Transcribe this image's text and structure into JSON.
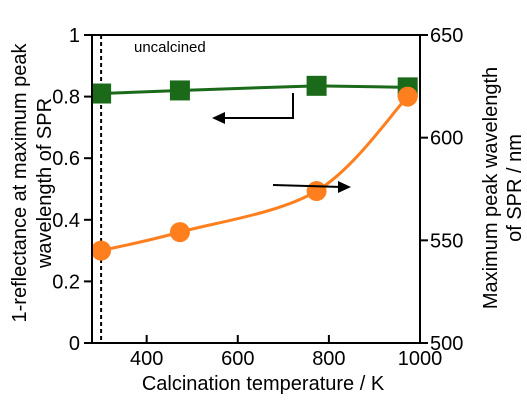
{
  "chart_data": {
    "type": "line",
    "xlabel": "Calcination temperature / K",
    "ylabel_left": [
      "1-reflectance at maximum peak",
      "wavelength of SPR"
    ],
    "ylabel_right": [
      "Maximum peak wavelength",
      "of SPR / nm"
    ],
    "xlim": [
      280,
      1000
    ],
    "ylim_left": [
      0,
      1
    ],
    "ylim_right": [
      500,
      650
    ],
    "x_ticks": [
      400,
      600,
      800,
      1000
    ],
    "y_ticks_left": [
      0,
      0.2,
      0.4,
      0.6,
      0.8,
      1
    ],
    "y_tick_labels_left": [
      "0",
      "0.2",
      "0.4",
      "0.6",
      "0.8",
      "1"
    ],
    "y_ticks_right": [
      500,
      550,
      600,
      650
    ],
    "grid": false,
    "colors": {
      "green": "#1a6a1a",
      "orange": "#ff7f1e"
    },
    "series": [
      {
        "axis": "left",
        "marker": "square",
        "color": "#1a6a1a",
        "x": [
          300,
          473,
          773,
          973
        ],
        "values": [
          0.81,
          0.82,
          0.835,
          0.83
        ]
      },
      {
        "axis": "right",
        "marker": "circle",
        "color": "#ff7f1e",
        "x": [
          300,
          473,
          773,
          973
        ],
        "values": [
          545,
          554,
          574,
          620
        ]
      }
    ],
    "annotations": [
      {
        "text": "uncalcined",
        "x": 300
      }
    ]
  }
}
